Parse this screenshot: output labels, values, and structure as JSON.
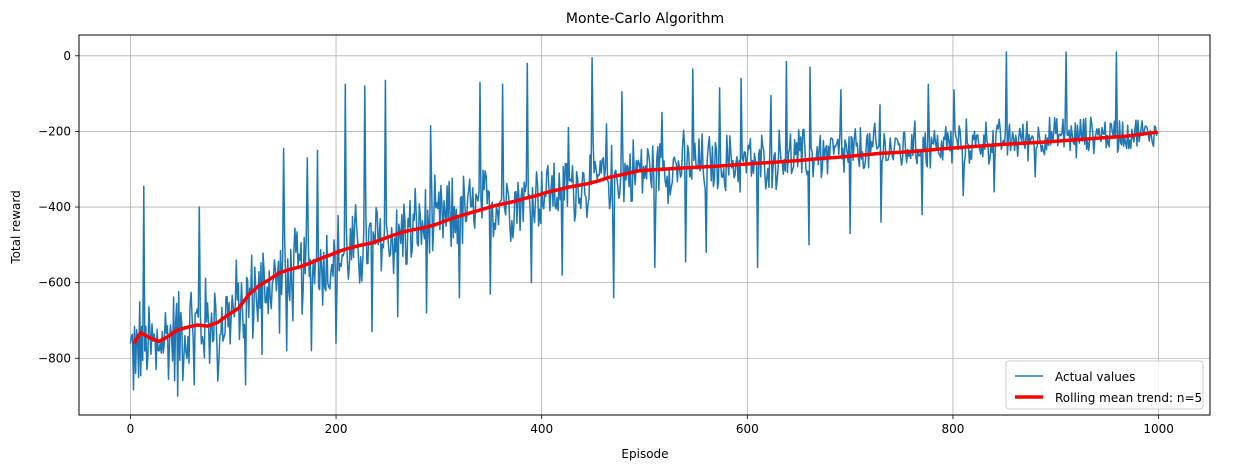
{
  "chart_data": {
    "type": "line",
    "title": "Monte-Carlo Algorithm",
    "xlabel": "Episode",
    "ylabel": "Total reward",
    "xlim": [
      -50,
      1050
    ],
    "ylim": [
      -950,
      55
    ],
    "xticks": [
      0,
      200,
      400,
      600,
      800,
      1000
    ],
    "xtick_labels": [
      "0",
      "200",
      "400",
      "600",
      "800",
      "1000"
    ],
    "yticks": [
      0,
      -200,
      -400,
      -600,
      -800
    ],
    "ytick_labels": [
      "0",
      "−200",
      "−400",
      "−600",
      "−800"
    ],
    "grid": true,
    "legend_position": "lower-right",
    "series": [
      {
        "name": "Actual values",
        "color": "#1f77b4",
        "style": "thin",
        "x": [
          0,
          10,
          20,
          30,
          40,
          50,
          60,
          70,
          80,
          90,
          100,
          110,
          120,
          130,
          140,
          150,
          160,
          170,
          180,
          190,
          200,
          210,
          220,
          230,
          240,
          250,
          260,
          270,
          280,
          290,
          300,
          310,
          320,
          330,
          340,
          350,
          360,
          370,
          380,
          390,
          400,
          410,
          420,
          430,
          440,
          450,
          460,
          470,
          480,
          490,
          500,
          510,
          520,
          530,
          540,
          550,
          560,
          570,
          580,
          590,
          600,
          610,
          620,
          630,
          640,
          650,
          660,
          670,
          680,
          690,
          700,
          710,
          720,
          730,
          740,
          750,
          760,
          770,
          780,
          790,
          800,
          810,
          820,
          830,
          840,
          850,
          860,
          870,
          880,
          890,
          900,
          910,
          920,
          930,
          940,
          950,
          960,
          970,
          980,
          990,
          1000
        ],
        "y": [
          -790,
          -760,
          -770,
          -750,
          -740,
          -730,
          -720,
          -715,
          -700,
          -690,
          -680,
          -650,
          -630,
          -610,
          -600,
          -590,
          -580,
          -570,
          -560,
          -550,
          -530,
          -520,
          -510,
          -500,
          -490,
          -480,
          -470,
          -465,
          -455,
          -450,
          -440,
          -430,
          -420,
          -410,
          -405,
          -395,
          -385,
          -380,
          -375,
          -370,
          -360,
          -355,
          -350,
          -345,
          -340,
          -330,
          -320,
          -315,
          -310,
          -305,
          -300,
          -298,
          -296,
          -294,
          -292,
          -290,
          -288,
          -286,
          -284,
          -282,
          -280,
          -278,
          -275,
          -272,
          -270,
          -268,
          -265,
          -262,
          -260,
          -258,
          -255,
          -253,
          -251,
          -249,
          -247,
          -245,
          -242,
          -240,
          -238,
          -236,
          -234,
          -232,
          -230,
          -228,
          -226,
          -224,
          -222,
          -220,
          -218,
          -216,
          -214,
          -212,
          -210,
          -209,
          -208,
          -207,
          -206,
          -205,
          -204,
          -203,
          -202
        ],
        "peaks": [
          [
            13,
            -345
          ],
          [
            67,
            -400
          ],
          [
            149,
            -245
          ],
          [
            172,
            -270
          ],
          [
            182,
            -250
          ],
          [
            209,
            -75
          ],
          [
            228,
            -80
          ],
          [
            248,
            -65
          ],
          [
            292,
            -185
          ],
          [
            340,
            -70
          ],
          [
            362,
            -75
          ],
          [
            386,
            -20
          ],
          [
            426,
            -190
          ],
          [
            449,
            -5
          ],
          [
            463,
            -180
          ],
          [
            478,
            -95
          ],
          [
            517,
            -150
          ],
          [
            547,
            -35
          ],
          [
            573,
            -85
          ],
          [
            594,
            -60
          ],
          [
            623,
            -105
          ],
          [
            638,
            -15
          ],
          [
            661,
            -30
          ],
          [
            691,
            -90
          ],
          [
            729,
            -130
          ],
          [
            776,
            -75
          ],
          [
            801,
            -90
          ],
          [
            852,
            10
          ],
          [
            910,
            10
          ],
          [
            959,
            10
          ]
        ],
        "dips": [
          [
            5,
            -840
          ],
          [
            25,
            -830
          ],
          [
            46,
            -900
          ],
          [
            62,
            -870
          ],
          [
            85,
            -860
          ],
          [
            112,
            -870
          ],
          [
            128,
            -790
          ],
          [
            152,
            -780
          ],
          [
            176,
            -780
          ],
          [
            200,
            -760
          ],
          [
            235,
            -730
          ],
          [
            260,
            -690
          ],
          [
            288,
            -680
          ],
          [
            320,
            -640
          ],
          [
            350,
            -630
          ],
          [
            390,
            -600
          ],
          [
            420,
            -580
          ],
          [
            470,
            -640
          ],
          [
            510,
            -560
          ],
          [
            540,
            -545
          ],
          [
            560,
            -520
          ],
          [
            610,
            -560
          ],
          [
            660,
            -500
          ],
          [
            700,
            -470
          ],
          [
            730,
            -440
          ],
          [
            770,
            -420
          ],
          [
            810,
            -370
          ],
          [
            840,
            -360
          ],
          [
            880,
            -320
          ],
          [
            920,
            -270
          ],
          [
            960,
            -255
          ],
          [
            990,
            -210
          ]
        ]
      },
      {
        "name": "Rolling mean trend: n=5",
        "color": "#ff0000",
        "style": "thick",
        "x": [
          4,
          10,
          20,
          28,
          35,
          45,
          55,
          65,
          75,
          85,
          95,
          105,
          115,
          125,
          135,
          145,
          155,
          165,
          175,
          185,
          195,
          205,
          215,
          225,
          235,
          245,
          255,
          265,
          275,
          285,
          295,
          305,
          315,
          325,
          335,
          345,
          355,
          365,
          375,
          385,
          395,
          405,
          415,
          425,
          435,
          445,
          455,
          465,
          475,
          485,
          495,
          510,
          530,
          550,
          570,
          590,
          610,
          630,
          650,
          670,
          690,
          710,
          730,
          750,
          770,
          790,
          810,
          830,
          850,
          870,
          890,
          910,
          930,
          950,
          970,
          990,
          998
        ],
        "y": [
          -758,
          -732,
          -748,
          -755,
          -745,
          -726,
          -718,
          -712,
          -715,
          -705,
          -685,
          -668,
          -632,
          -608,
          -592,
          -574,
          -565,
          -558,
          -548,
          -536,
          -526,
          -515,
          -507,
          -500,
          -495,
          -485,
          -475,
          -466,
          -460,
          -455,
          -448,
          -438,
          -428,
          -420,
          -412,
          -404,
          -396,
          -390,
          -384,
          -376,
          -370,
          -361,
          -355,
          -348,
          -343,
          -338,
          -331,
          -322,
          -316,
          -310,
          -304,
          -301,
          -298,
          -295,
          -292,
          -288,
          -284,
          -281,
          -277,
          -272,
          -268,
          -263,
          -258,
          -255,
          -251,
          -246,
          -242,
          -238,
          -234,
          -231,
          -228,
          -224,
          -220,
          -216,
          -212,
          -205,
          -202
        ]
      }
    ]
  }
}
